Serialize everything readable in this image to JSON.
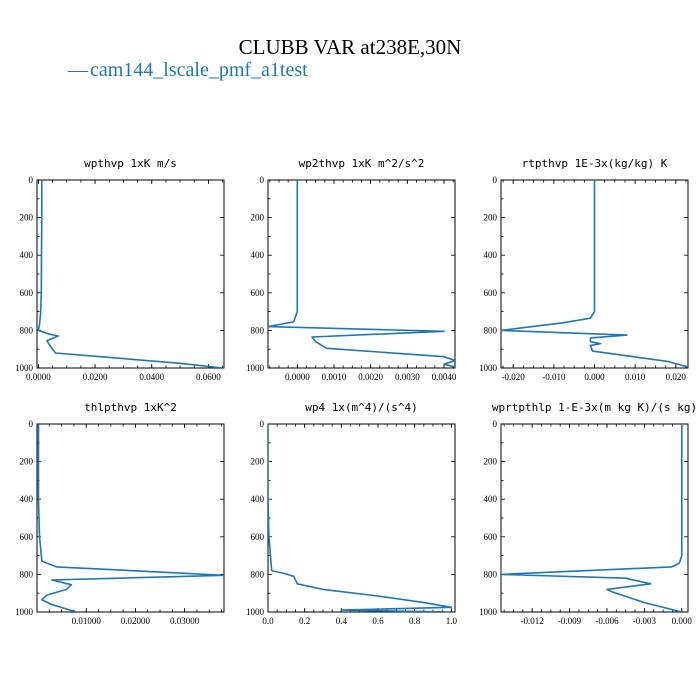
{
  "figure": {
    "title": "CLUBB VAR at238E,30N",
    "legend": {
      "symbol": "—",
      "label": "cam144_lscale_pmf_a1test"
    }
  },
  "colors": {
    "series": "#1f77b4",
    "axes": "#000000"
  },
  "chart_data": [
    {
      "type": "line",
      "title": "wpthvp  1xK m/s",
      "xlim": [
        -0.0005,
        0.0655
      ],
      "ylim": [
        1000,
        0
      ],
      "xticks": [
        0.0,
        0.02,
        0.04,
        0.06
      ],
      "xtick_labels": [
        "0.0000",
        "0.0200",
        "0.0400",
        "0.0600"
      ],
      "yticks": [
        0,
        200,
        400,
        600,
        800,
        1000
      ],
      "series": [
        {
          "x": [
            0.0012,
            0.0012,
            0.0011,
            0.001,
            0.0008,
            0.0004,
            0.0,
            0.004,
            0.007,
            0.0045,
            0.003,
            0.004,
            0.006,
            0.03,
            0.05,
            0.065
          ],
          "y": [
            0,
            200,
            400,
            600,
            700,
            770,
            800,
            820,
            830,
            845,
            855,
            880,
            920,
            950,
            975,
            1000
          ]
        }
      ]
    },
    {
      "type": "line",
      "title": "wp2thvp  1xK m^2/s^2",
      "xlim": [
        -0.0008,
        0.0043
      ],
      "ylim": [
        1000,
        0
      ],
      "xticks": [
        0.0,
        0.001,
        0.002,
        0.003,
        0.004
      ],
      "xtick_labels": [
        "0.0000",
        "0.0010",
        "0.0020",
        "0.0030",
        "0.0040"
      ],
      "yticks": [
        0,
        200,
        400,
        600,
        800,
        1000
      ],
      "series": [
        {
          "x": [
            0.0,
            0.0,
            0.0,
            0.0,
            -0.0001,
            -0.0008,
            0.004,
            0.0004,
            0.0005,
            0.0008,
            0.004,
            0.0043,
            0.004,
            0.0043
          ],
          "y": [
            0,
            200,
            400,
            700,
            755,
            780,
            805,
            835,
            860,
            895,
            940,
            960,
            980,
            995
          ]
        }
      ]
    },
    {
      "type": "line",
      "title": "rtpthvp  1E-3x(kg/kg) K",
      "xlim": [
        -0.023,
        0.023
      ],
      "ylim": [
        1000,
        0
      ],
      "xticks": [
        -0.02,
        -0.01,
        0.0,
        0.01,
        0.02
      ],
      "xtick_labels": [
        "-0.020",
        "-0.010",
        "0.000",
        "0.010",
        "0.020"
      ],
      "yticks": [
        0,
        200,
        400,
        600,
        800,
        1000
      ],
      "series": [
        {
          "x": [
            0.0,
            0.0,
            0.0,
            0.0,
            -0.001,
            -0.008,
            -0.023,
            0.008,
            -0.001,
            -0.001,
            0.0015,
            -0.001,
            -0.0005,
            0.008,
            0.018,
            0.023
          ],
          "y": [
            0,
            200,
            400,
            700,
            735,
            760,
            800,
            825,
            840,
            860,
            870,
            880,
            910,
            935,
            965,
            995
          ]
        }
      ]
    },
    {
      "type": "line",
      "title": "thlpthvp  1xK^2",
      "xlim": [
        0.0,
        0.038
      ],
      "ylim": [
        1000,
        0
      ],
      "xticks": [
        0.01,
        0.02,
        0.03
      ],
      "xtick_labels": [
        "0.01000",
        "0.02000",
        "0.03000"
      ],
      "yticks": [
        0,
        200,
        400,
        600,
        800,
        1000
      ],
      "series": [
        {
          "x": [
            0.0003,
            0.0003,
            0.0003,
            0.0005,
            0.001,
            0.004,
            0.038,
            0.003,
            0.007,
            0.006,
            0.002,
            0.001,
            0.003,
            0.008
          ],
          "y": [
            0,
            200,
            400,
            600,
            730,
            760,
            805,
            830,
            855,
            880,
            910,
            935,
            960,
            1000
          ]
        }
      ]
    },
    {
      "type": "line",
      "title": "wp4  1x(m^4)/(s^4)",
      "xlim": [
        0.0,
        1.02
      ],
      "ylim": [
        1000,
        0
      ],
      "xticks": [
        0.0,
        0.2,
        0.4,
        0.6,
        0.8,
        1.0
      ],
      "xtick_labels": [
        "0.0",
        "0.2",
        "0.4",
        "0.6",
        "0.8",
        "1.0"
      ],
      "yticks": [
        0,
        200,
        400,
        600,
        800,
        1000
      ],
      "series": [
        {
          "x": [
            0.0,
            0.0,
            0.0,
            0.005,
            0.02,
            0.09,
            0.14,
            0.16,
            0.3,
            0.6,
            0.85,
            1.0,
            0.4,
            1.0
          ],
          "y": [
            0,
            200,
            400,
            600,
            780,
            795,
            810,
            850,
            880,
            915,
            950,
            975,
            990,
            1000
          ]
        }
      ]
    },
    {
      "type": "line",
      "title": "wprtpthlp  1-E-3x(m kg K)/(s kg)",
      "xlim": [
        -0.0145,
        0.0005
      ],
      "ylim": [
        1000,
        0
      ],
      "xticks": [
        -0.012,
        -0.009,
        -0.006,
        -0.003,
        0.0
      ],
      "xtick_labels": [
        "-0.012",
        "-0.009",
        "-0.006",
        "-0.003",
        "0.000"
      ],
      "yticks": [
        0,
        200,
        400,
        600,
        800,
        1000
      ],
      "series": [
        {
          "x": [
            0.0,
            0.0,
            0.0,
            0.0,
            -0.0002,
            -0.0008,
            -0.0145,
            -0.0045,
            -0.0025,
            -0.006,
            -0.0055,
            -0.003,
            0.0
          ],
          "y": [
            0,
            200,
            400,
            700,
            740,
            760,
            800,
            820,
            850,
            880,
            895,
            950,
            1000
          ]
        }
      ]
    }
  ]
}
